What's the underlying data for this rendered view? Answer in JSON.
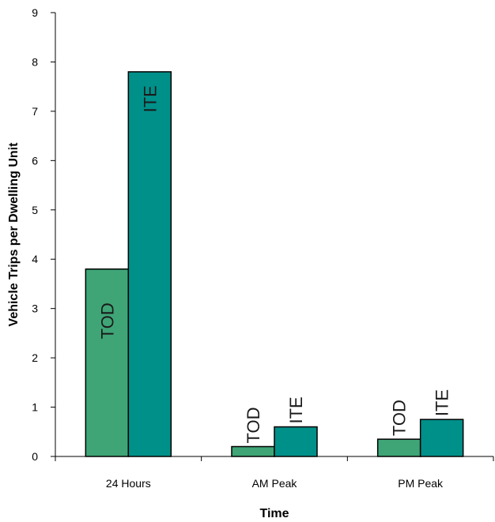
{
  "chart_data": {
    "type": "bar",
    "categories": [
      "24 Hours",
      "AM Peak",
      "PM Peak"
    ],
    "series": [
      {
        "name": "TOD",
        "values": [
          3.8,
          0.2,
          0.35
        ],
        "color": "#3fa577"
      },
      {
        "name": "ITE",
        "values": [
          7.8,
          0.6,
          0.75
        ],
        "color": "#00908a"
      }
    ],
    "bar_labels": [
      [
        "TOD",
        "TOD",
        "TOD"
      ],
      [
        "ITE",
        "ITE",
        "ITE"
      ]
    ],
    "xlabel": "Time",
    "ylabel": "Vehicle Trips per Dwelling Unit",
    "ylim": [
      0,
      9
    ],
    "yticks": [
      0,
      1,
      2,
      3,
      4,
      5,
      6,
      7,
      8,
      9
    ],
    "grid": false,
    "legend": "none"
  }
}
